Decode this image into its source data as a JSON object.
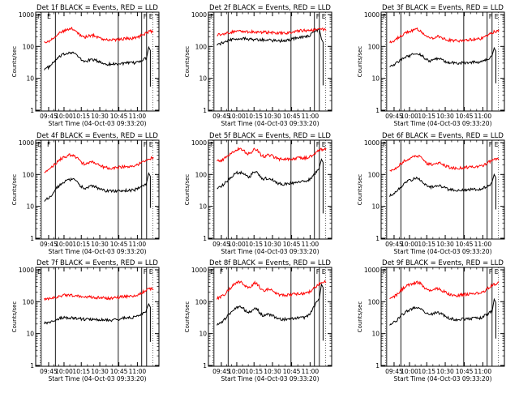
{
  "common": {
    "x_tick_labels": [
      "09:45",
      "10:00",
      "10:15",
      "10:30",
      "10:45",
      "11:00"
    ],
    "y_tick_labels": [
      "1",
      "10",
      "100",
      "1000"
    ],
    "ylabel": "Counts/sec",
    "xlabel": "Start Time (04-Oct-03 09:33:20)",
    "colors": {
      "events": "#000000",
      "lld": "#ff0000",
      "axes": "#000000"
    }
  },
  "chart_data": [
    {
      "type": "line",
      "title": "Det 1f BLACK = Events, RED = LLD",
      "flags": {
        "left": [
          "F",
          "E"
        ],
        "right": [
          "F",
          "E"
        ]
      },
      "series": [
        {
          "name": "BLACK = Events",
          "profile": "a1",
          "base": [
            20,
            62,
            38,
            28,
            30,
            48
          ],
          "spike": [
            95,
            5.5
          ]
        },
        {
          "name": "RED = LLD",
          "profile": "a1",
          "base": [
            135,
            330,
            220,
            160,
            180,
            300
          ]
        }
      ]
    },
    {
      "type": "line",
      "title": "Det 2f BLACK = Events, RED = LLD",
      "flags": {
        "left": [
          "F"
        ],
        "right": [
          "F",
          "E"
        ]
      },
      "series": [
        {
          "name": "BLACK = Events",
          "profile": "flat",
          "base": [
            120,
            180,
            160,
            150,
            200,
            420
          ],
          "spike": [
            170,
            6
          ]
        },
        {
          "name": "RED = LLD",
          "profile": "flat",
          "base": [
            240,
            300,
            280,
            260,
            320,
            350
          ]
        }
      ]
    },
    {
      "type": "line",
      "title": "Det 3f BLACK = Events, RED = LLD",
      "flags": {
        "left": [
          "F"
        ],
        "right": [
          "F",
          "E"
        ]
      },
      "series": [
        {
          "name": "BLACK = Events",
          "profile": "a1",
          "base": [
            25,
            55,
            40,
            30,
            32,
            55
          ],
          "spike": [
            90,
            7
          ]
        },
        {
          "name": "RED = LLD",
          "profile": "a1",
          "base": [
            140,
            320,
            200,
            150,
            170,
            310
          ]
        }
      ]
    },
    {
      "type": "line",
      "title": "Det 4f BLACK = Events, RED = LLD",
      "flags": {
        "left": [
          "E",
          "F"
        ],
        "right": [
          "F",
          "E"
        ]
      },
      "series": [
        {
          "name": "BLACK = Events",
          "profile": "a1",
          "base": [
            16,
            65,
            42,
            30,
            32,
            60
          ],
          "spike": [
            110,
            9
          ]
        },
        {
          "name": "RED = LLD",
          "profile": "a1",
          "base": [
            120,
            380,
            240,
            160,
            180,
            330
          ]
        }
      ]
    },
    {
      "type": "line",
      "title": "Det 5f BLACK = Events, RED = LLD",
      "flags": {
        "left": [
          "F"
        ],
        "right": [
          "F",
          "E"
        ]
      },
      "series": [
        {
          "name": "BLACK = Events",
          "profile": "b1",
          "base": [
            40,
            110,
            90,
            50,
            60,
            200
          ],
          "spike": [
            300,
            6
          ]
        },
        {
          "name": "RED = LLD",
          "profile": "b1",
          "base": [
            260,
            600,
            450,
            300,
            330,
            650
          ]
        }
      ]
    },
    {
      "type": "line",
      "title": "Det 6f BLACK = Events, RED = LLD",
      "flags": {
        "left": [
          "F"
        ],
        "right": [
          "F",
          "E"
        ]
      },
      "series": [
        {
          "name": "BLACK = Events",
          "profile": "a1",
          "base": [
            22,
            70,
            45,
            32,
            34,
            60
          ],
          "spike": [
            100,
            8
          ]
        },
        {
          "name": "RED = LLD",
          "profile": "a1",
          "base": [
            130,
            350,
            230,
            160,
            175,
            320
          ]
        }
      ]
    },
    {
      "type": "line",
      "title": "Det 7f BLACK = Events, RED = LLD",
      "flags": {
        "left": [
          "E"
        ],
        "right": [
          "F",
          "E"
        ]
      },
      "series": [
        {
          "name": "BLACK = Events",
          "profile": "flat",
          "base": [
            22,
            32,
            28,
            26,
            32,
            60
          ],
          "spike": [
            85,
            5.5
          ]
        },
        {
          "name": "RED = LLD",
          "profile": "flat",
          "base": [
            120,
            160,
            140,
            130,
            150,
            260
          ]
        }
      ]
    },
    {
      "type": "line",
      "title": "Det 8f BLACK = Events, RED = LLD",
      "flags": {
        "left": [
          "E",
          "F"
        ],
        "right": [
          "F",
          "E"
        ]
      },
      "series": [
        {
          "name": "BLACK = Events",
          "profile": "b1",
          "base": [
            20,
            65,
            45,
            28,
            32,
            200
          ],
          "spike": [
            350,
            6
          ]
        },
        {
          "name": "RED = LLD",
          "profile": "b1",
          "base": [
            130,
            380,
            280,
            160,
            180,
            450
          ]
        }
      ]
    },
    {
      "type": "line",
      "title": "Det 9f BLACK = Events, RED = LLD",
      "flags": {
        "left": [
          "F"
        ],
        "right": [
          "F",
          "E"
        ]
      },
      "series": [
        {
          "name": "BLACK = Events",
          "profile": "a1",
          "base": [
            20,
            60,
            45,
            28,
            30,
            60
          ],
          "spike": [
            120,
            7
          ]
        },
        {
          "name": "RED = LLD",
          "profile": "a1",
          "base": [
            130,
            370,
            250,
            160,
            180,
            380
          ]
        }
      ]
    }
  ]
}
